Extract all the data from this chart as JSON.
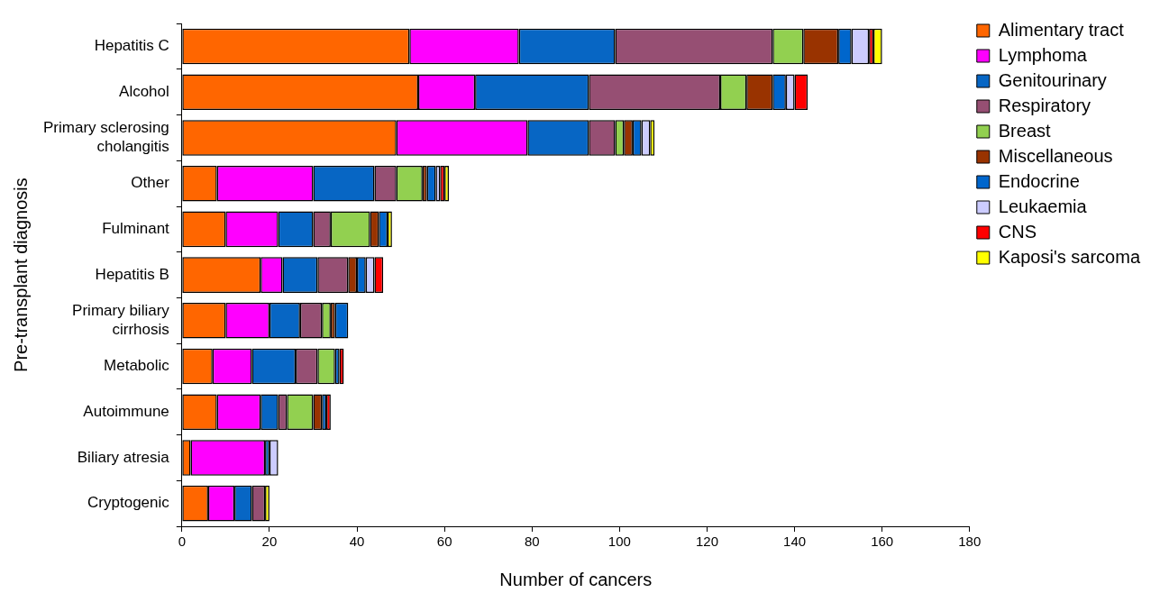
{
  "chart_data": {
    "type": "bar",
    "orientation": "horizontal",
    "stacked": true,
    "xlabel": "Number of cancers",
    "ylabel": "Pre-transplant diagnosis",
    "categories": [
      "Hepatitis C",
      "Alcohol",
      "Primary sclerosing cholangitis",
      "Other",
      "Fulminant",
      "Hepatitis B",
      "Primary biliary cirrhosis",
      "Metabolic",
      "Autoimmune",
      "Biliary atresia",
      "Cryptogenic"
    ],
    "series": [
      {
        "name": "Alimentary tract",
        "color": "#ff6600",
        "values": [
          52,
          54,
          49,
          8,
          10,
          18,
          10,
          7,
          8,
          2,
          6
        ]
      },
      {
        "name": "Lymphoma",
        "color": "#ff00ff",
        "values": [
          25,
          13,
          30,
          22,
          12,
          5,
          10,
          9,
          10,
          17,
          6
        ]
      },
      {
        "name": "Genitourinary",
        "color": "#0766c4",
        "values": [
          22,
          26,
          14,
          14,
          8,
          8,
          7,
          10,
          4,
          1,
          4
        ]
      },
      {
        "name": "Respiratory",
        "color": "#964f73",
        "values": [
          36,
          30,
          6,
          5,
          4,
          7,
          5,
          5,
          2,
          null,
          3
        ]
      },
      {
        "name": "Breast",
        "color": "#92d050",
        "values": [
          7,
          6,
          2,
          6,
          9,
          null,
          2,
          4,
          6,
          null,
          null
        ]
      },
      {
        "name": "Miscellaneous",
        "color": "#993300",
        "values": [
          8,
          6,
          2,
          1,
          2,
          2,
          1,
          null,
          2,
          null,
          null
        ]
      },
      {
        "name": "Endocrine",
        "color": "#0066cc",
        "values": [
          3,
          3,
          2,
          2,
          2,
          2,
          3,
          1,
          1,
          null,
          null
        ]
      },
      {
        "name": "Leukaemia",
        "color": "#ccccff",
        "values": [
          4,
          2,
          2,
          1,
          null,
          2,
          null,
          null,
          null,
          2,
          null
        ]
      },
      {
        "name": "CNS",
        "color": "#ff0000",
        "values": [
          1,
          3,
          null,
          1,
          null,
          2,
          null,
          1,
          1,
          null,
          null
        ]
      },
      {
        "name": "Kaposi's sarcoma",
        "color": "#ffff00",
        "values": [
          2,
          null,
          1,
          1,
          1,
          null,
          null,
          null,
          null,
          null,
          1
        ]
      }
    ],
    "xlim": [
      0,
      180
    ],
    "xticks": [
      0,
      20,
      40,
      60,
      80,
      100,
      120,
      140,
      160,
      180
    ],
    "grid": false,
    "legend": "right"
  }
}
